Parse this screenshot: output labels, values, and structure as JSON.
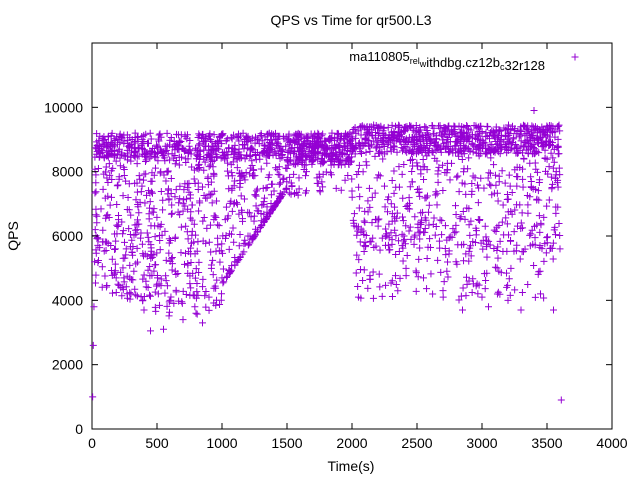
{
  "chart_data": {
    "type": "scatter",
    "title": "QPS vs Time for qr500.L3",
    "xlabel": "Time(s)",
    "ylabel": "QPS",
    "xlim": [
      0,
      4000
    ],
    "ylim": [
      0,
      12000
    ],
    "xticks": [
      0,
      500,
      1000,
      1500,
      2000,
      2500,
      3000,
      3500,
      4000
    ],
    "yticks": [
      0,
      2000,
      4000,
      6000,
      8000,
      10000
    ],
    "grid": false,
    "legend_position": "top-right",
    "marker": "plus",
    "color": "#9400d3",
    "series": [
      {
        "name_parts": [
          {
            "text": "ma110805",
            "sub": false
          },
          {
            "text": "rel",
            "sub": true
          },
          {
            "text": "w",
            "sub": true
          },
          {
            "text": "ithdbg.cz12b",
            "sub": false
          },
          {
            "text": "c",
            "sub": true
          },
          {
            "text": "32r128",
            "sub": false
          }
        ],
        "name_plain": "ma110805relwithdbg.cz12bc32r128",
        "sample_points": [
          [
            5,
            1000
          ],
          [
            10,
            2600
          ],
          [
            15,
            3800
          ],
          [
            20,
            5200
          ],
          [
            25,
            6200
          ],
          [
            30,
            7900
          ],
          [
            40,
            8800
          ],
          [
            60,
            9100
          ],
          [
            80,
            8600
          ],
          [
            100,
            9000
          ],
          [
            120,
            8800
          ],
          [
            150,
            7200
          ],
          [
            180,
            5600
          ],
          [
            200,
            4500
          ],
          [
            250,
            5800
          ],
          [
            300,
            4200
          ],
          [
            350,
            6500
          ],
          [
            400,
            3700
          ],
          [
            450,
            3050
          ],
          [
            500,
            4500
          ],
          [
            550,
            3100
          ],
          [
            600,
            4000
          ],
          [
            700,
            3400
          ],
          [
            800,
            3600
          ],
          [
            850,
            3300
          ],
          [
            900,
            4100
          ],
          [
            1000,
            4700
          ],
          [
            1100,
            5200
          ],
          [
            1200,
            6000
          ],
          [
            1300,
            6700
          ],
          [
            1400,
            7400
          ],
          [
            1500,
            8100
          ],
          [
            1600,
            8400
          ],
          [
            1700,
            8600
          ],
          [
            1800,
            8700
          ],
          [
            1900,
            8800
          ],
          [
            2000,
            8800
          ],
          [
            2100,
            8900
          ],
          [
            2200,
            8900
          ],
          [
            2300,
            9000
          ],
          [
            2400,
            9000
          ],
          [
            2500,
            9000
          ],
          [
            2600,
            9000
          ],
          [
            2700,
            9100
          ],
          [
            2800,
            9100
          ],
          [
            2900,
            9100
          ],
          [
            3000,
            9200
          ],
          [
            3100,
            9200
          ],
          [
            3200,
            9200
          ],
          [
            3300,
            9250
          ],
          [
            3400,
            9900
          ],
          [
            3500,
            9300
          ],
          [
            3580,
            9400
          ],
          [
            3610,
            900
          ],
          [
            2000,
            7400
          ],
          [
            2100,
            5800
          ],
          [
            2200,
            6500
          ],
          [
            2300,
            6100
          ],
          [
            2400,
            6000
          ],
          [
            2550,
            4700
          ],
          [
            2700,
            4300
          ],
          [
            2800,
            5200
          ],
          [
            2850,
            3700
          ],
          [
            2900,
            4600
          ],
          [
            3000,
            4100
          ],
          [
            3050,
            3800
          ],
          [
            3200,
            4000
          ],
          [
            3300,
            3700
          ],
          [
            3450,
            4200
          ],
          [
            3550,
            3700
          ],
          [
            3600,
            5600
          ]
        ]
      }
    ]
  }
}
